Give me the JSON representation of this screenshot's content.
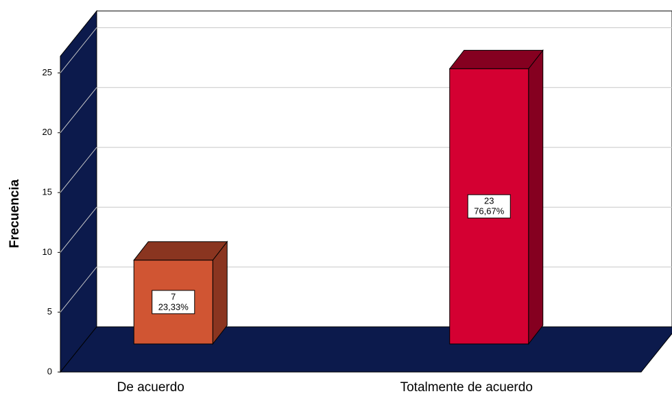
{
  "chart_data": {
    "type": "bar3d",
    "y_axis_label": "Frecuencia",
    "categories": [
      "De acuerdo",
      "Totalmente de acuerdo"
    ],
    "values": [
      7,
      23
    ],
    "percent_values": [
      23.33,
      76.67
    ],
    "percent_labels": [
      "23,33%",
      "76,67%"
    ],
    "colors": [
      "#d05533",
      "#d40032"
    ],
    "side_colors": [
      "#8a3520",
      "#850020"
    ],
    "wall_color": "#0c1a4c",
    "ylim": [
      0,
      26.4
    ],
    "yticks": [
      0,
      5,
      10,
      15,
      20,
      25
    ],
    "grid": true
  }
}
